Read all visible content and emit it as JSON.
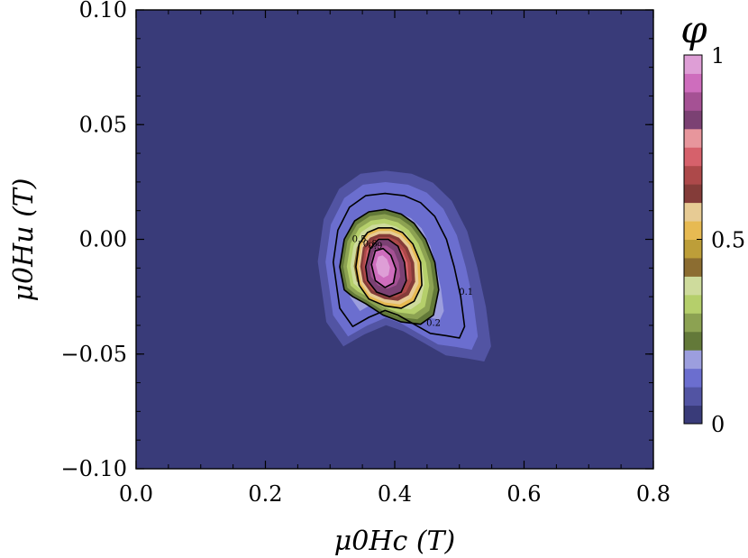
{
  "chart_data": {
    "type": "heatmap",
    "subtype": "filled-contour",
    "title": "",
    "xlabel": "μ0Hc (T)",
    "ylabel": "μ0Hu (T)",
    "xlim": [
      0.0,
      0.8
    ],
    "ylim": [
      -0.1,
      0.1
    ],
    "x_ticks": [
      0.0,
      0.2,
      0.4,
      0.6,
      0.8
    ],
    "x_tick_labels": [
      "0.0",
      "0.2",
      "0.4",
      "0.6",
      "0.8"
    ],
    "y_ticks": [
      -0.1,
      -0.05,
      0.0,
      0.05,
      0.1
    ],
    "y_tick_labels": [
      "−0.10",
      "−0.05",
      "0.00",
      "0.05",
      "0.10"
    ],
    "colorbar": {
      "label": "φ",
      "min": 0,
      "max": 1,
      "ticks": [
        0,
        0.5,
        1
      ],
      "tick_labels": [
        "0",
        "0.5",
        "1"
      ],
      "levels": 20,
      "colors": [
        "#393b79",
        "#5254a3",
        "#6b6ecf",
        "#9c9ede",
        "#637939",
        "#8ca252",
        "#b5cf6b",
        "#cedb9c",
        "#8c6d31",
        "#bd9e39",
        "#e7ba52",
        "#e7cb94",
        "#843c39",
        "#ad494a",
        "#d6616b",
        "#e7969c",
        "#7b4173",
        "#a55194",
        "#ce6dbd",
        "#de9ed6"
      ]
    },
    "background_value": 0.02,
    "peak": {
      "x": 0.38,
      "y": -0.011,
      "value": 0.95
    },
    "contour_lines": [
      {
        "level": 0.1,
        "label": "0.1",
        "x": [
          0.305,
          0.312,
          0.33,
          0.355,
          0.385,
          0.415,
          0.44,
          0.462,
          0.48,
          0.492,
          0.502,
          0.508,
          0.5,
          0.48,
          0.455,
          0.43,
          0.405,
          0.385,
          0.36,
          0.335,
          0.315,
          0.305
        ],
        "y": [
          -0.01,
          0.004,
          0.014,
          0.019,
          0.02,
          0.019,
          0.016,
          0.01,
          0.0,
          -0.012,
          -0.025,
          -0.038,
          -0.043,
          -0.042,
          -0.041,
          -0.037,
          -0.033,
          -0.031,
          -0.034,
          -0.038,
          -0.03,
          -0.01
        ]
      },
      {
        "level": 0.2,
        "label": "0.2",
        "x": [
          0.315,
          0.322,
          0.338,
          0.36,
          0.385,
          0.41,
          0.43,
          0.448,
          0.462,
          0.468,
          0.46,
          0.44,
          0.41,
          0.382,
          0.355,
          0.335,
          0.322,
          0.315
        ],
        "y": [
          -0.012,
          0.0,
          0.008,
          0.012,
          0.013,
          0.011,
          0.007,
          0.0,
          -0.01,
          -0.022,
          -0.033,
          -0.037,
          -0.036,
          -0.033,
          -0.028,
          -0.025,
          -0.022,
          -0.012
        ]
      },
      {
        "level": 0.5,
        "label": "0.5",
        "x": [
          0.34,
          0.345,
          0.358,
          0.375,
          0.395,
          0.412,
          0.428,
          0.44,
          0.442,
          0.43,
          0.41,
          0.385,
          0.36,
          0.345,
          0.34
        ],
        "y": [
          -0.012,
          -0.002,
          0.003,
          0.005,
          0.005,
          0.003,
          -0.002,
          -0.01,
          -0.02,
          -0.027,
          -0.03,
          -0.029,
          -0.026,
          -0.02,
          -0.012
        ]
      },
      {
        "level": 0.8,
        "label": "0.8",
        "x": [
          0.355,
          0.362,
          0.375,
          0.39,
          0.405,
          0.415,
          0.418,
          0.41,
          0.392,
          0.372,
          0.358,
          0.355
        ],
        "y": [
          -0.012,
          -0.004,
          0.0,
          0.0,
          -0.003,
          -0.01,
          -0.018,
          -0.023,
          -0.025,
          -0.023,
          -0.018,
          -0.012
        ]
      },
      {
        "level": 0.9,
        "label": "0.9",
        "x": [
          0.364,
          0.37,
          0.382,
          0.394,
          0.402,
          0.398,
          0.385,
          0.37,
          0.364
        ],
        "y": [
          -0.011,
          -0.005,
          -0.004,
          -0.007,
          -0.013,
          -0.019,
          -0.021,
          -0.018,
          -0.011
        ]
      }
    ]
  }
}
